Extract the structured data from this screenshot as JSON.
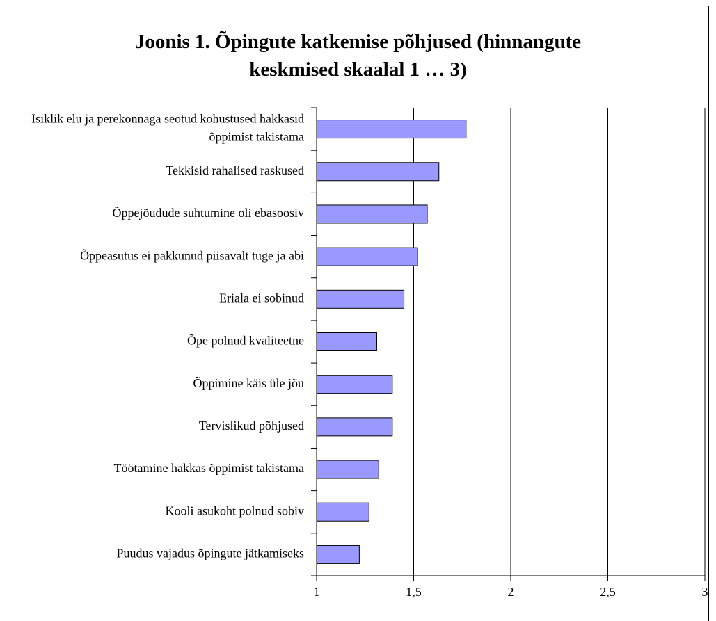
{
  "chart_data": {
    "type": "hbar",
    "title": "Joonis 1. Õpingute katkemise põhjused (hinnangute keskmised skaalal 1 … 3)",
    "categories": [
      "Isiklik elu ja perekonnaga seotud kohustused hakkasid õppimist takistama",
      "Tekkisid rahalised raskused",
      "Õppejõudude suhtumine oli ebasoosiv",
      "Õppeasutus ei pakkunud piisavalt tuge ja abi",
      "Eriala ei sobinud",
      "Õpe polnud kvaliteetne",
      "Õppimine käis üle jõu",
      "Tervislikud põhjused",
      "Töötamine hakkas õppimist takistama",
      "Kooli asukoht polnud sobiv",
      "Puudus vajadus õpingute jätkamiseks"
    ],
    "values": [
      1.77,
      1.63,
      1.57,
      1.52,
      1.45,
      1.31,
      1.39,
      1.39,
      1.32,
      1.27,
      1.22
    ],
    "color": "#9999ff",
    "xlim": [
      1,
      3
    ],
    "xticks": [
      1,
      {
        "value": 1.5,
        "label": "1,5"
      },
      2,
      {
        "value": 2.5,
        "label": "2,5"
      },
      3
    ],
    "grid": true
  }
}
